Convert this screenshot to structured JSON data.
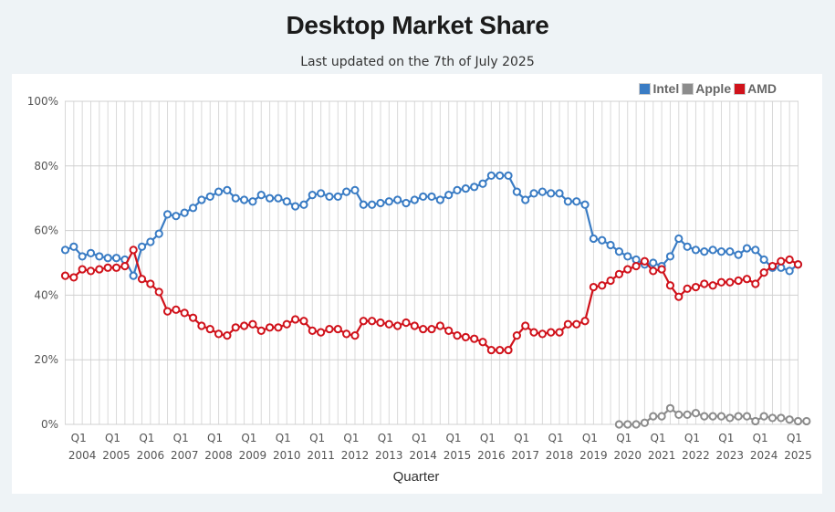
{
  "header": {
    "title": "Desktop Market Share",
    "subtitle": "Last updated on the 7th of July 2025"
  },
  "chart_data": {
    "type": "line",
    "title": "Desktop Market Share",
    "subtitle": "Last updated on the 7th of July 2025",
    "xlabel": "Quarter",
    "ylabel": "",
    "ylim": [
      0,
      100
    ],
    "y_ticks": [
      "0%",
      "20%",
      "40%",
      "60%",
      "80%",
      "100%"
    ],
    "y_tick_values": [
      0,
      20,
      40,
      60,
      80,
      100
    ],
    "grid": true,
    "legend_position": "top-right",
    "x_tick_labels": [
      {
        "q": "Q1",
        "year": "2004"
      },
      {
        "q": "Q1",
        "year": "2005"
      },
      {
        "q": "Q1",
        "year": "2006"
      },
      {
        "q": "Q1",
        "year": "2007"
      },
      {
        "q": "Q1",
        "year": "2008"
      },
      {
        "q": "Q1",
        "year": "2009"
      },
      {
        "q": "Q1",
        "year": "2010"
      },
      {
        "q": "Q1",
        "year": "2011"
      },
      {
        "q": "Q1",
        "year": "2012"
      },
      {
        "q": "Q1",
        "year": "2013"
      },
      {
        "q": "Q1",
        "year": "2014"
      },
      {
        "q": "Q1",
        "year": "2015"
      },
      {
        "q": "Q1",
        "year": "2016"
      },
      {
        "q": "Q1",
        "year": "2017"
      },
      {
        "q": "Q1",
        "year": "2018"
      },
      {
        "q": "Q1",
        "year": "2019"
      },
      {
        "q": "Q1",
        "year": "2020"
      },
      {
        "q": "Q1",
        "year": "2021"
      },
      {
        "q": "Q1",
        "year": "2022"
      },
      {
        "q": "Q1",
        "year": "2023"
      },
      {
        "q": "Q1",
        "year": "2024"
      },
      {
        "q": "Q1",
        "year": "2025"
      }
    ],
    "x_start": "2003 Q3",
    "x_end": "2025 Q1",
    "series": [
      {
        "name": "Intel",
        "color": "#3a7cc4",
        "start_index": 0,
        "values": [
          54,
          55,
          52,
          53,
          52,
          51.5,
          51.5,
          51,
          46,
          55,
          56.5,
          59,
          65,
          64.5,
          65.5,
          67,
          69.5,
          70.5,
          72,
          72.5,
          70,
          69.5,
          69,
          71,
          70,
          70,
          69,
          67.5,
          68,
          71,
          71.5,
          70.5,
          70.5,
          72,
          72.5,
          68,
          68,
          68.5,
          69,
          69.5,
          68.5,
          69.5,
          70.5,
          70.5,
          69.5,
          71,
          72.5,
          73,
          73.5,
          74.5,
          77,
          77,
          77,
          72,
          69.5,
          71.5,
          72,
          71.5,
          71.5,
          69,
          69,
          68,
          57.5,
          57,
          55.5,
          53.5,
          52,
          51,
          49.5,
          50,
          49,
          52,
          57.5,
          55,
          54,
          53.5,
          54,
          53.5,
          53.5,
          52.5,
          54.5,
          54,
          51,
          48.5,
          48.5,
          47.5,
          49.5
        ]
      },
      {
        "name": "Apple",
        "color": "#8c8c8c",
        "start_index": 65,
        "values": [
          0,
          0,
          0,
          0.5,
          2.5,
          2.5,
          5,
          3,
          3,
          3.5,
          2.5,
          2.5,
          2.5,
          2,
          2.5,
          2.5,
          1,
          2.5,
          2,
          2,
          1.5,
          1,
          1
        ]
      },
      {
        "name": "AMD",
        "color": "#d0121b",
        "start_index": 0,
        "values": [
          46,
          45.5,
          48,
          47.5,
          48,
          48.5,
          48.5,
          49,
          54,
          45,
          43.5,
          41,
          35,
          35.5,
          34.5,
          33,
          30.5,
          29.5,
          28,
          27.5,
          30,
          30.5,
          31,
          29,
          30,
          30,
          31,
          32.5,
          32,
          29,
          28.5,
          29.5,
          29.5,
          28,
          27.5,
          32,
          32,
          31.5,
          31,
          30.5,
          31.5,
          30.5,
          29.5,
          29.5,
          30.5,
          29,
          27.5,
          27,
          26.5,
          25.5,
          23,
          23,
          23,
          27.5,
          30.5,
          28.5,
          28,
          28.5,
          28.5,
          31,
          31,
          32,
          42.5,
          43,
          44.5,
          46.5,
          48,
          49,
          50.5,
          47.5,
          48,
          43,
          39.5,
          42,
          42.5,
          43.5,
          43,
          44,
          44,
          44.5,
          45,
          43.5,
          47,
          49,
          50.5,
          51,
          49.5
        ]
      }
    ]
  },
  "legend": {
    "items": [
      {
        "label": "Intel",
        "color": "#3a7cc4"
      },
      {
        "label": "Apple",
        "color": "#8c8c8c"
      },
      {
        "label": "AMD",
        "color": "#d0121b"
      }
    ]
  }
}
